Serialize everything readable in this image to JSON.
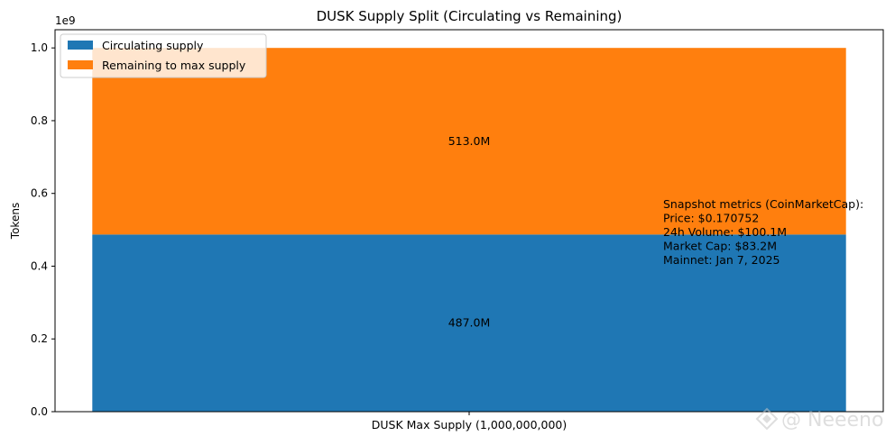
{
  "chart_data": {
    "type": "bar",
    "stacked": true,
    "title": "DUSK Supply Split (Circulating vs Remaining)",
    "ylabel": "Tokens",
    "y_scale_label": "1e9",
    "y_scale_factor": 1000000000,
    "ylim": [
      0,
      1050000000
    ],
    "yticks": [
      0,
      200000000,
      400000000,
      600000000,
      800000000,
      1000000000
    ],
    "ytick_labels": [
      "0.0",
      "0.2",
      "0.4",
      "0.6",
      "0.8",
      "1.0"
    ],
    "categories": [
      "DUSK Max Supply (1,000,000,000)"
    ],
    "series": [
      {
        "name": "Circulating supply",
        "color": "#1f77b4",
        "values": [
          487000000
        ],
        "labels": [
          "487.0M"
        ]
      },
      {
        "name": "Remaining to max supply",
        "color": "#ff7f0e",
        "values": [
          513000000
        ],
        "labels": [
          "513.0M"
        ]
      }
    ],
    "legend": "top-left",
    "grid": false,
    "annotation": [
      "Snapshot metrics (CoinMarketCap):",
      "Price: $0.170752",
      "24h Volume: $100.1M",
      "Market Cap: $83.2M",
      "Mainnet: Jan 7, 2025"
    ]
  },
  "watermark": "@ Neeeno"
}
